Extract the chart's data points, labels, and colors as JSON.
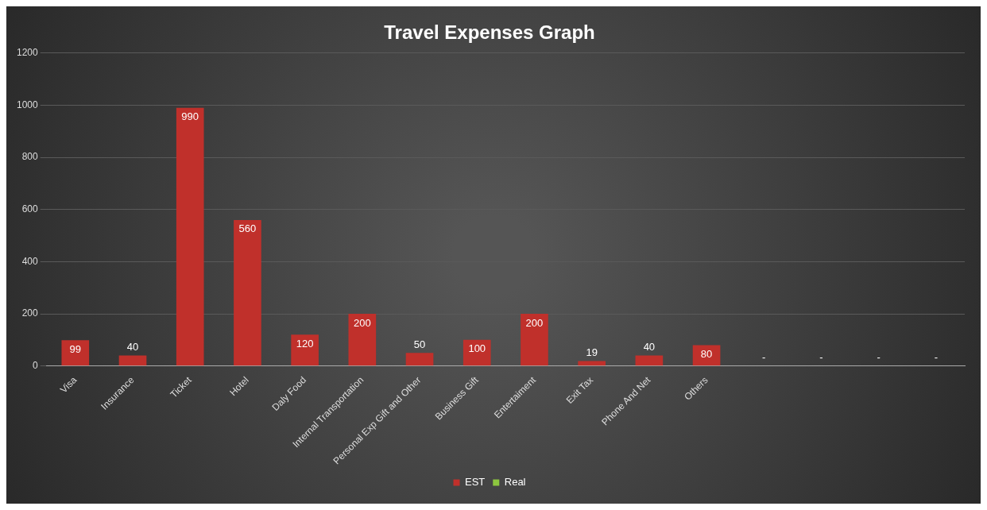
{
  "chart_data": {
    "type": "bar",
    "title": "Travel Expenses Graph",
    "categories": [
      "Visa",
      "Insurance",
      "Ticket",
      "Hotel",
      "Daly Food",
      "Internal Transportation",
      "Personal Exp Gift and Other",
      "Business Gift",
      "Entertaiment",
      "Exit Tax",
      "Phone And Net",
      "Others",
      null,
      null,
      null,
      null
    ],
    "series": [
      {
        "name": "EST",
        "color": "#c0302b",
        "values": [
          99,
          40,
          990,
          560,
          120,
          200,
          50,
          100,
          200,
          19,
          40,
          80,
          0,
          0,
          0,
          0
        ],
        "value_labels": [
          "99",
          "40",
          "990",
          "560",
          "120",
          "200",
          "50",
          "100",
          "200",
          "19",
          "40",
          "80",
          "-",
          "-",
          "-",
          "-"
        ]
      },
      {
        "name": "Real",
        "color": "#8dc63f",
        "values": [
          null,
          null,
          null,
          null,
          null,
          null,
          null,
          null,
          null,
          null,
          null,
          null,
          null,
          null,
          null,
          null
        ]
      }
    ],
    "ylim": [
      0,
      1200
    ],
    "yticks": [
      0,
      200,
      400,
      600,
      800,
      1000,
      1200
    ],
    "grid": "y",
    "legend": "bottom"
  }
}
